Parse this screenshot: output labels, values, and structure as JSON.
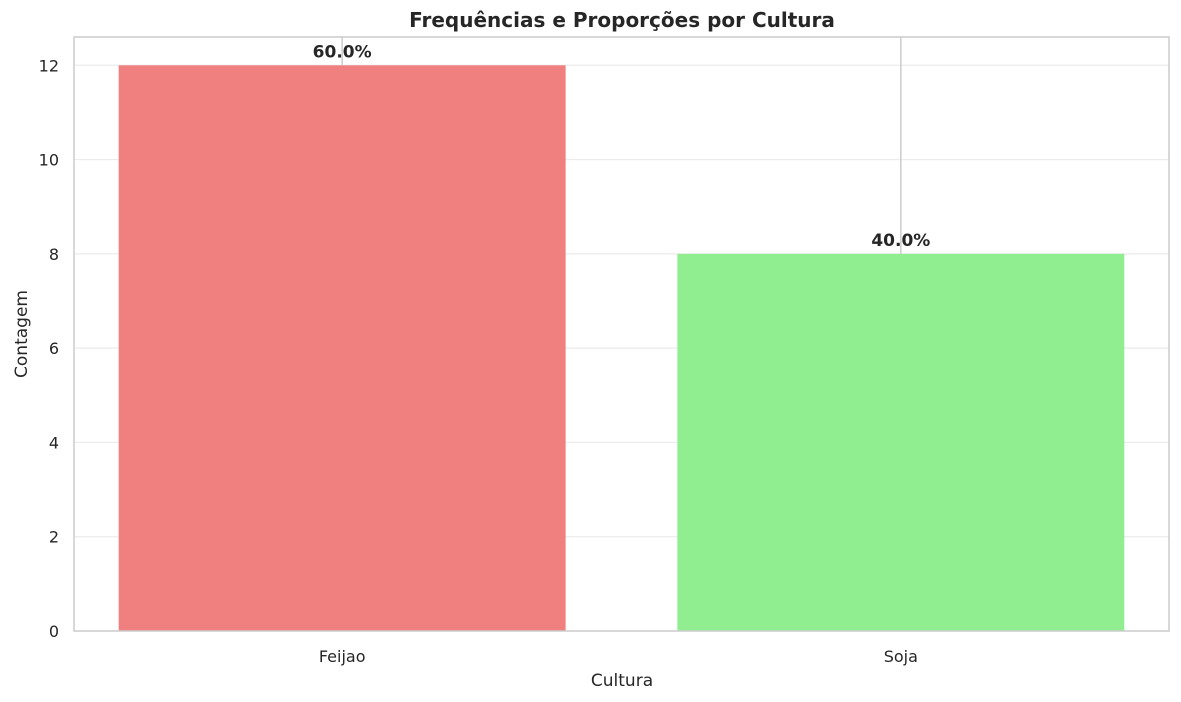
{
  "chart_data": {
    "type": "bar",
    "title": "Frequências e Proporções por Cultura",
    "xlabel": "Cultura",
    "ylabel": "Contagem",
    "categories": [
      "Feijao",
      "Soja"
    ],
    "values": [
      12,
      8
    ],
    "data_labels": [
      "60.0%",
      "40.0%"
    ],
    "colors": [
      "#f08080",
      "#90ee90"
    ],
    "ylim": [
      0,
      12.6
    ],
    "yticks": [
      0,
      2,
      4,
      6,
      8,
      10,
      12
    ],
    "grid": true,
    "legend": "none"
  }
}
